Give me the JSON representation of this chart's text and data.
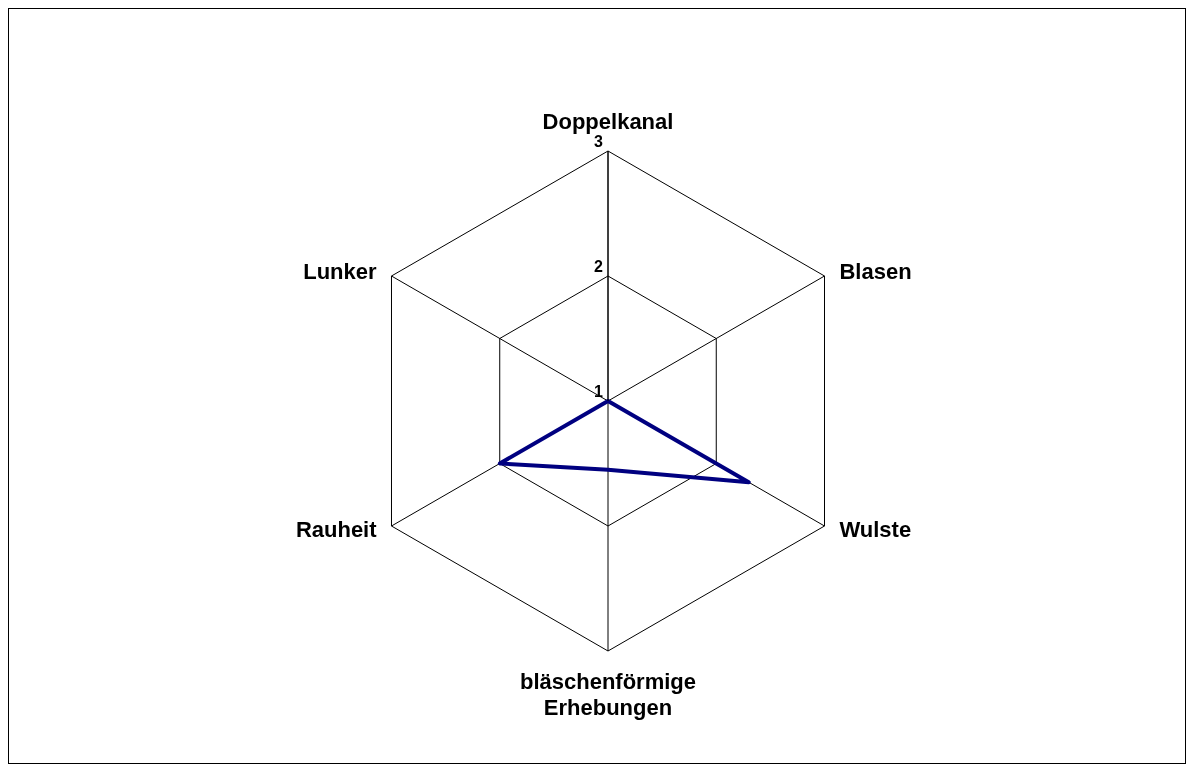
{
  "chart_data": {
    "type": "radar",
    "categories": [
      "Doppelkanal",
      "Blasen",
      "Wulste",
      "bläschenförmige Erhebungen",
      "Rauheit",
      "Lunker"
    ],
    "series": [
      {
        "color": "#000080",
        "values": [
          1,
          1,
          2.3,
          1.55,
          2,
          1
        ]
      }
    ],
    "ylim": [
      1,
      3
    ],
    "yticks": [
      1,
      2,
      3
    ],
    "grid": true,
    "marker": "none"
  }
}
